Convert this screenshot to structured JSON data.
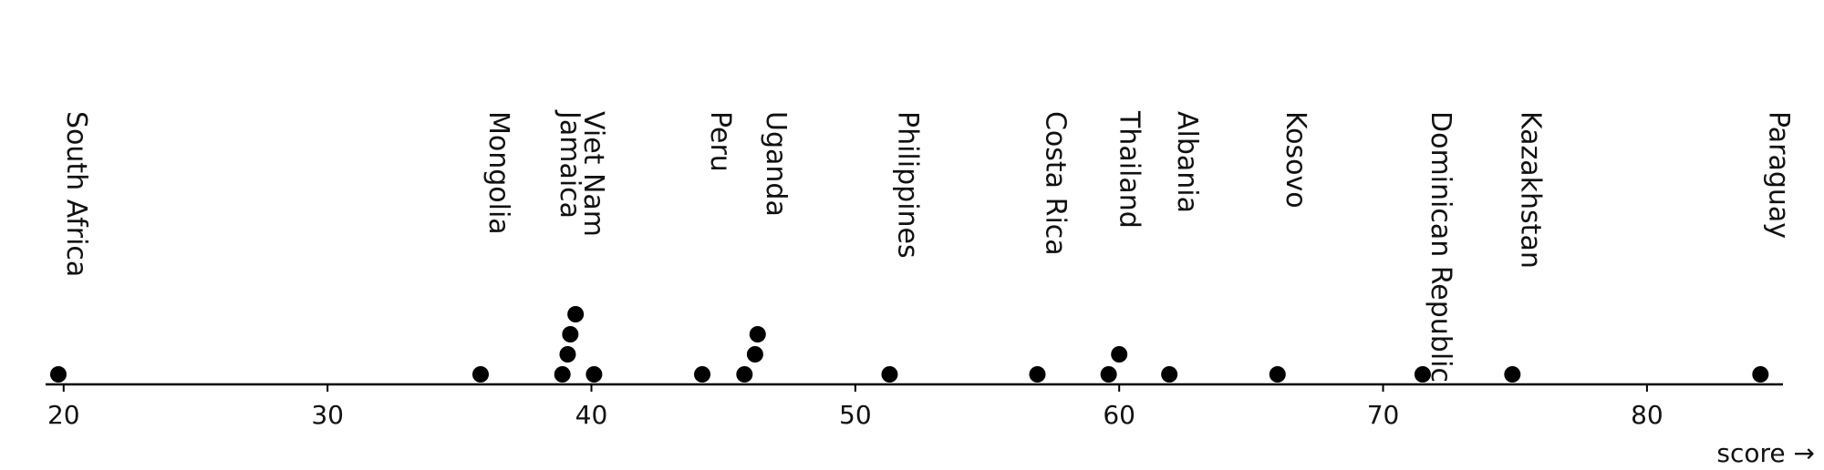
{
  "chart_data": {
    "type": "scatter",
    "title": "",
    "xlabel": "score →",
    "xlim": [
      19.8,
      84.6
    ],
    "xticks": [
      20,
      30,
      40,
      50,
      60,
      70,
      80
    ],
    "grid": false,
    "labels": [
      {
        "text": "South Africa",
        "x": 19.8
      },
      {
        "text": "Mongolia",
        "x": 35.8
      },
      {
        "text": "Viet Nam",
        "x": 39.4
      },
      {
        "text": "Jamaica",
        "x": 38.5
      },
      {
        "text": "Peru",
        "x": 44.2
      },
      {
        "text": "Uganda",
        "x": 46.3
      },
      {
        "text": "Philippines",
        "x": 51.3
      },
      {
        "text": "Costa Rica",
        "x": 56.9
      },
      {
        "text": "Thailand",
        "x": 59.7
      },
      {
        "text": "Albania",
        "x": 61.9
      },
      {
        "text": "Kosovo",
        "x": 66.0
      },
      {
        "text": "Dominican Republic",
        "x": 71.5
      },
      {
        "text": "Kazakhstan",
        "x": 74.9
      },
      {
        "text": "Paraguay",
        "x": 84.3
      }
    ],
    "points": [
      {
        "x": 19.8,
        "stack": 0
      },
      {
        "x": 35.8,
        "stack": 0
      },
      {
        "x": 38.9,
        "stack": 0
      },
      {
        "x": 40.1,
        "stack": 0
      },
      {
        "x": 39.1,
        "stack": 1
      },
      {
        "x": 39.2,
        "stack": 2
      },
      {
        "x": 39.4,
        "stack": 3
      },
      {
        "x": 44.2,
        "stack": 0
      },
      {
        "x": 45.8,
        "stack": 0
      },
      {
        "x": 46.2,
        "stack": 1
      },
      {
        "x": 46.3,
        "stack": 2
      },
      {
        "x": 51.3,
        "stack": 0
      },
      {
        "x": 56.9,
        "stack": 0
      },
      {
        "x": 59.6,
        "stack": 0
      },
      {
        "x": 60.0,
        "stack": 1
      },
      {
        "x": 61.9,
        "stack": 0
      },
      {
        "x": 66.0,
        "stack": 0
      },
      {
        "x": 71.5,
        "stack": 0
      },
      {
        "x": 74.9,
        "stack": 0
      },
      {
        "x": 84.3,
        "stack": 0
      }
    ]
  }
}
